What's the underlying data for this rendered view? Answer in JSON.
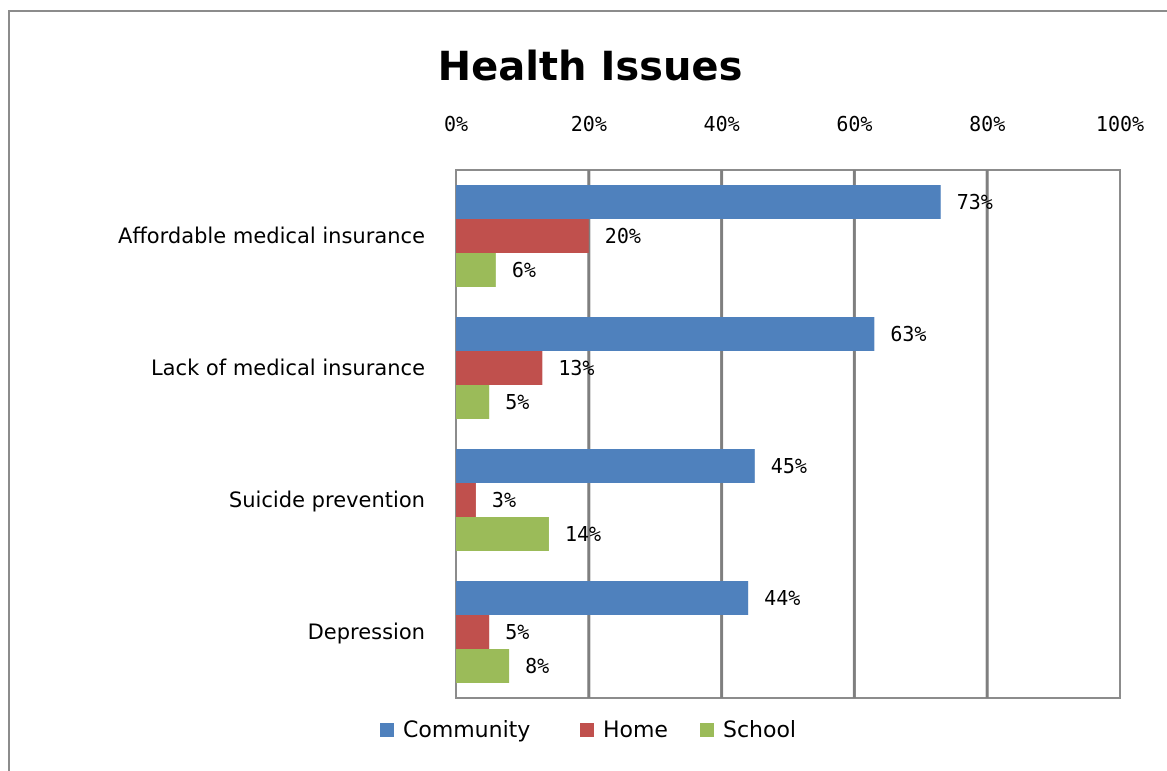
{
  "chart_data": {
    "type": "bar",
    "orientation": "horizontal",
    "title": "Health Issues",
    "categories": [
      "Affordable medical insurance",
      "Lack of medical insurance",
      "Suicide prevention",
      "Depression"
    ],
    "series": [
      {
        "name": "Community",
        "color": "#4f81bd",
        "values": [
          73,
          63,
          45,
          44
        ],
        "labels": [
          "73%",
          "63%",
          "45%",
          "44%"
        ]
      },
      {
        "name": "Home",
        "color": "#c0504d",
        "values": [
          20,
          13,
          3,
          5
        ],
        "labels": [
          "20%",
          "13%",
          "3%",
          "5%"
        ]
      },
      {
        "name": "School",
        "color": "#9bbb59",
        "values": [
          6,
          5,
          14,
          8
        ],
        "labels": [
          "6%",
          "5%",
          "14%",
          "8%"
        ]
      }
    ],
    "xlim": [
      0,
      100
    ],
    "xticks": [
      0,
      20,
      40,
      60,
      80,
      100
    ],
    "xtick_labels": [
      "0%",
      "20%",
      "40%",
      "60%",
      "80%",
      "100%"
    ],
    "x_axis_position": "top",
    "grid": "vertical",
    "legend": "bottom"
  }
}
